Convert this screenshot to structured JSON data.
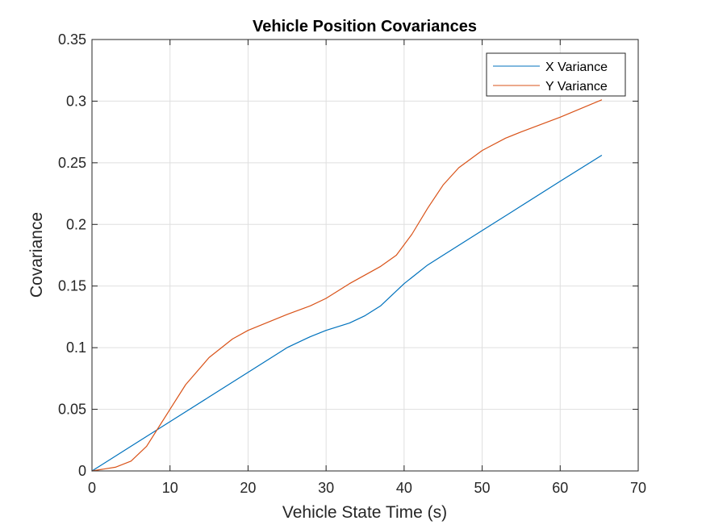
{
  "chart_data": {
    "type": "line",
    "title": "Vehicle Position Covariances",
    "xlabel": "Vehicle State Time (s)",
    "ylabel": "Covariance",
    "xlim": [
      0,
      70
    ],
    "ylim": [
      0,
      0.35
    ],
    "xticks": [
      0,
      10,
      20,
      30,
      40,
      50,
      60,
      70
    ],
    "yticks": [
      0,
      0.05,
      0.1,
      0.15,
      0.2,
      0.25,
      0.3,
      0.35
    ],
    "xtick_labels": [
      "0",
      "10",
      "20",
      "30",
      "40",
      "50",
      "60",
      "70"
    ],
    "ytick_labels": [
      "0",
      "0.05",
      "0.1",
      "0.15",
      "0.2",
      "0.25",
      "0.3",
      "0.35"
    ],
    "grid": true,
    "legend_position": "top-right",
    "series": [
      {
        "name": "X Variance",
        "color": "#0072BD",
        "x": [
          0,
          5,
          10,
          15,
          20,
          25,
          28,
          30,
          33,
          35,
          37,
          40,
          43,
          45,
          50,
          55,
          60,
          65.3
        ],
        "y": [
          0,
          0.02,
          0.04,
          0.06,
          0.08,
          0.1,
          0.109,
          0.114,
          0.12,
          0.126,
          0.134,
          0.152,
          0.167,
          0.175,
          0.195,
          0.215,
          0.235,
          0.256
        ]
      },
      {
        "name": "Y Variance",
        "color": "#D95319",
        "x": [
          0,
          3,
          5,
          7,
          8.5,
          10,
          12,
          15,
          18,
          20,
          25,
          28,
          30,
          33,
          37,
          39,
          41,
          43,
          45,
          47,
          50,
          53,
          55,
          60,
          65.3
        ],
        "y": [
          0,
          0.003,
          0.008,
          0.02,
          0.035,
          0.05,
          0.07,
          0.092,
          0.107,
          0.114,
          0.127,
          0.134,
          0.14,
          0.152,
          0.166,
          0.175,
          0.192,
          0.213,
          0.232,
          0.246,
          0.26,
          0.27,
          0.275,
          0.287,
          0.301
        ]
      }
    ]
  }
}
